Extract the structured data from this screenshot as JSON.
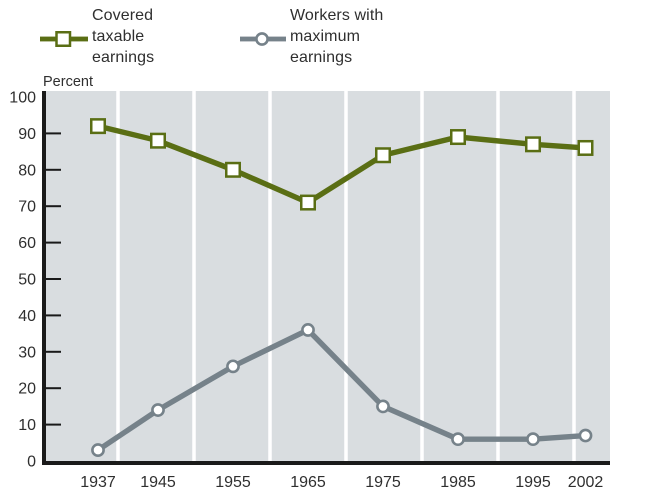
{
  "chart_data": {
    "type": "line",
    "title": "",
    "ylabel": "Percent",
    "xlabel": "",
    "x": [
      1937,
      1945,
      1955,
      1965,
      1975,
      1985,
      1995,
      2002
    ],
    "xtick_labels": [
      "1937",
      "1945",
      "1955",
      "1965",
      "1975",
      "1985",
      "1995",
      "2002"
    ],
    "ylim": [
      0,
      100
    ],
    "ytick_step": 10,
    "grid": "vertical white gridlines on light gray plot background",
    "legend_position": "top",
    "colors": {
      "plot_background": "#d9dde0",
      "gridline": "#ffffff",
      "axis": "#1a1a1a",
      "text": "#2f2f2f",
      "series_covered": "#5a6e14",
      "series_workers": "#76828a"
    },
    "series": [
      {
        "name": "Covered taxable earnings",
        "marker": "square",
        "color": "#5a6e14",
        "values": [
          92,
          88,
          80,
          71,
          84,
          89,
          87,
          86
        ]
      },
      {
        "name": "Workers with maximum earnings",
        "marker": "circle",
        "color": "#76828a",
        "values": [
          3,
          14,
          26,
          36,
          15,
          6,
          6,
          7
        ]
      }
    ]
  }
}
